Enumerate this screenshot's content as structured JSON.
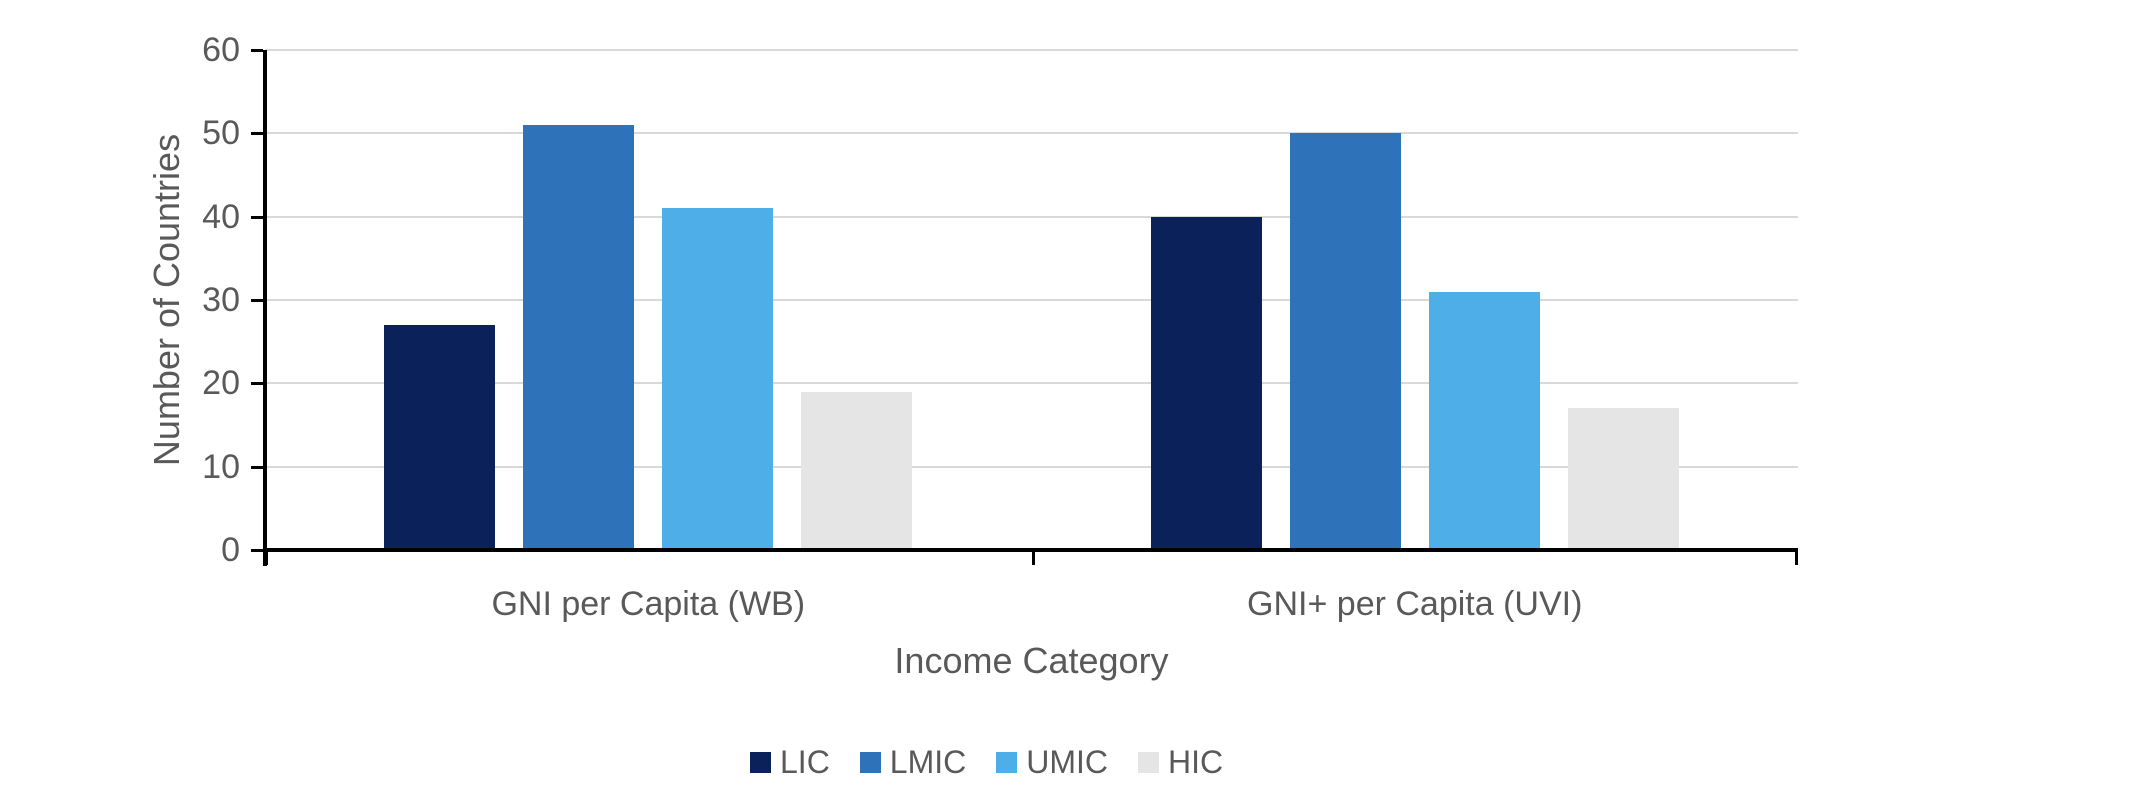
{
  "chart_data": {
    "type": "bar",
    "title": "",
    "categories": [
      "GNI per Capita (WB)",
      "GNI+ per Capita (UVI)"
    ],
    "series": [
      {
        "name": "LIC",
        "color": "#0A2259",
        "values": [
          27,
          40
        ]
      },
      {
        "name": "LMIC",
        "color": "#2E72B9",
        "values": [
          51,
          50
        ]
      },
      {
        "name": "UMIC",
        "color": "#4DAEE8",
        "values": [
          41,
          31
        ]
      },
      {
        "name": "HIC",
        "color": "#E5E5E5",
        "values": [
          19,
          17
        ]
      }
    ],
    "xlabel": "Income Category",
    "ylabel": "Number of Countries",
    "ylim": [
      0,
      60
    ],
    "ytick_step": 10,
    "yticks": [
      0,
      10,
      20,
      30,
      40,
      50,
      60
    ],
    "grid": "horizontal",
    "legend_position": "bottom",
    "legend_entries": [
      "LIC",
      "LMIC",
      "UMIC",
      "HIC"
    ]
  },
  "colors": {
    "text": "#595959",
    "gridline": "#D9D9D9",
    "axis": "#000000",
    "background": "#FFFFFF"
  }
}
